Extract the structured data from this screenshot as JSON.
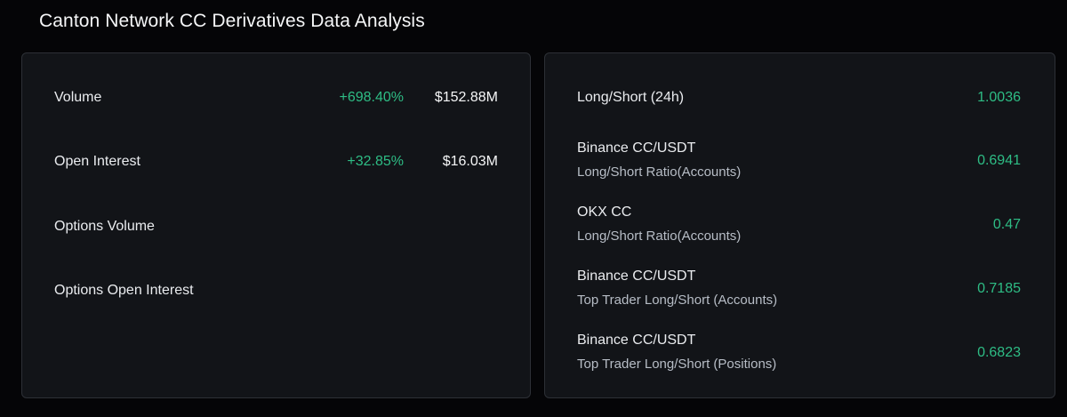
{
  "page": {
    "title": "Canton Network CC Derivatives Data Analysis"
  },
  "colors": {
    "background": "#050507",
    "panel": "#121418",
    "panel_border": "#2d3036",
    "positive": "#2ebd85",
    "text_primary": "#eaecef",
    "text_secondary": "#b7bdc6"
  },
  "left_panel": {
    "rows": [
      {
        "label": "Volume",
        "change": "+698.40%",
        "amount": "$152.88M"
      },
      {
        "label": "Open Interest",
        "change": "+32.85%",
        "amount": "$16.03M"
      },
      {
        "label": "Options Volume",
        "change": "",
        "amount": ""
      },
      {
        "label": "Options Open Interest",
        "change": "",
        "amount": ""
      }
    ]
  },
  "right_panel": {
    "rows": [
      {
        "primary": "Long/Short (24h)",
        "secondary": "",
        "value": "1.0036"
      },
      {
        "primary": "Binance CC/USDT",
        "secondary": "Long/Short Ratio(Accounts)",
        "value": "0.6941"
      },
      {
        "primary": "OKX CC",
        "secondary": "Long/Short Ratio(Accounts)",
        "value": "0.47"
      },
      {
        "primary": "Binance CC/USDT",
        "secondary": "Top Trader Long/Short (Accounts)",
        "value": "0.7185"
      },
      {
        "primary": "Binance CC/USDT",
        "secondary": "Top Trader Long/Short (Positions)",
        "value": "0.6823"
      }
    ]
  }
}
